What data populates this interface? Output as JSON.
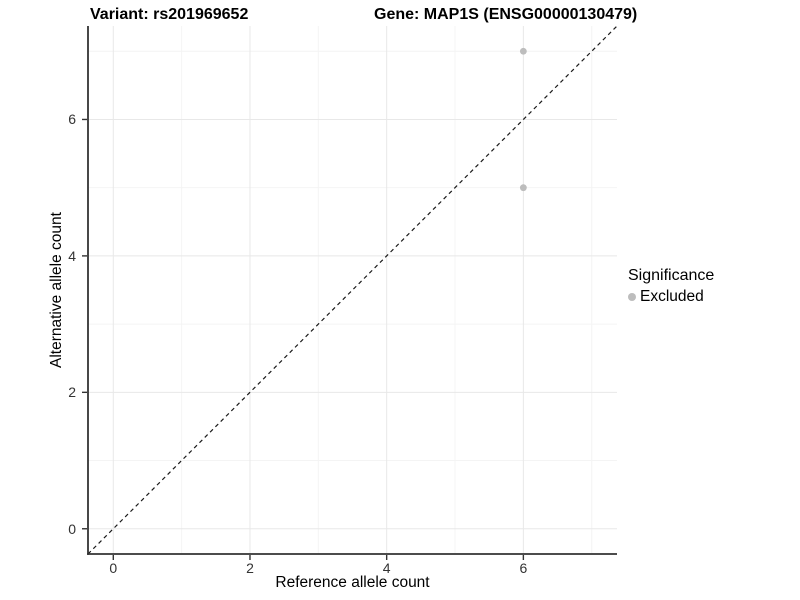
{
  "chart_data": {
    "type": "scatter",
    "title_left": "Variant: rs201969652",
    "title_right": "Gene: MAP1S (ENSG00000130479)",
    "xlabel": "Reference allele count",
    "ylabel": "Alternative allele count",
    "xlim": [
      -0.37,
      7.37
    ],
    "ylim": [
      -0.37,
      7.37
    ],
    "x_major_ticks": [
      0,
      2,
      4,
      6
    ],
    "y_major_ticks": [
      0,
      2,
      4,
      6
    ],
    "x_minor_gridlines": [
      1,
      3,
      5,
      7
    ],
    "y_minor_gridlines": [
      1,
      3,
      5,
      7
    ],
    "grid": "major+minor",
    "legend": {
      "title": "Significance",
      "position": "right",
      "items": [
        {
          "label": "Excluded",
          "color": "#bdbdbd"
        }
      ]
    },
    "series": [
      {
        "name": "Excluded",
        "color": "#bdbdbd",
        "points": [
          {
            "x": 6,
            "y": 7
          },
          {
            "x": 6,
            "y": 5
          }
        ]
      }
    ],
    "reference_line": {
      "kind": "identity",
      "slope": 1,
      "intercept": 0,
      "style": "dashed",
      "color": "#1a1a1a"
    }
  },
  "style": {
    "background": "#ffffff",
    "major_grid_color": "#e8e8e8",
    "minor_grid_color": "#f4f4f4",
    "axis_line_color": "#333333",
    "tick_mark_color": "#333333",
    "tick_label_color": "#333333",
    "text_color": "#000000"
  }
}
